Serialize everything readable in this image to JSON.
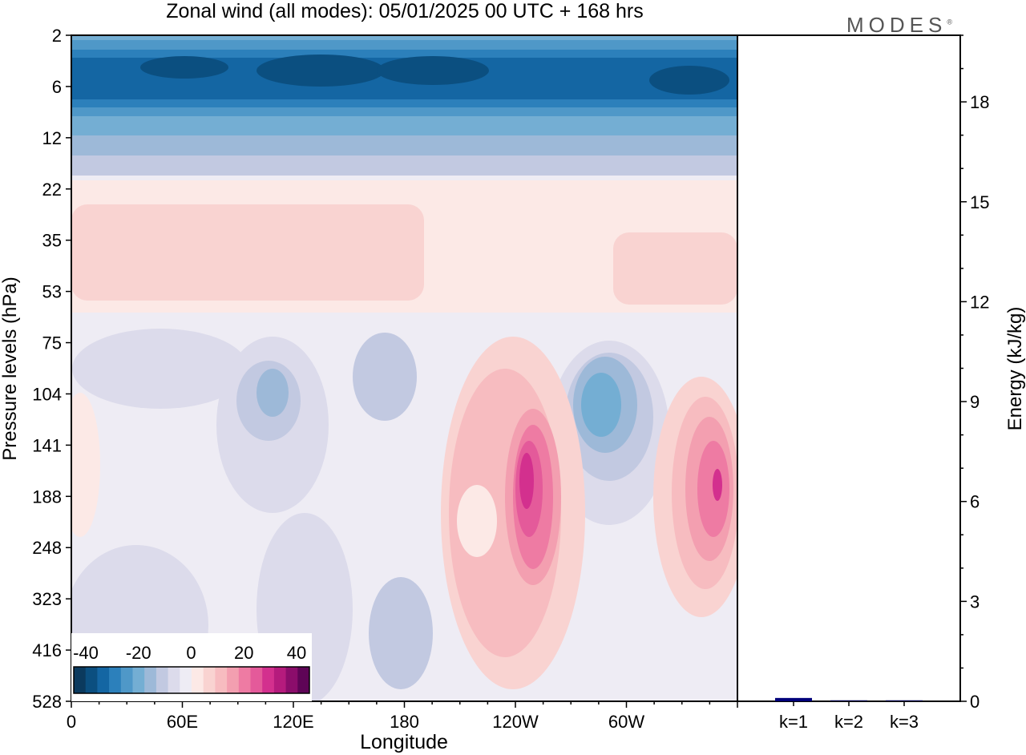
{
  "chart_data": [
    {
      "type": "heatmap",
      "title": "Zonal wind (all modes):  05/01/2025  00 UTC  + 168 hrs",
      "xlabel": "Longitude",
      "ylabel": "Pressure levels (hPa)",
      "xticks": [
        "0",
        "60E",
        "120E",
        "180",
        "120W",
        "60W"
      ],
      "yticks": [
        "2",
        "6",
        "12",
        "22",
        "35",
        "53",
        "75",
        "104",
        "141",
        "188",
        "248",
        "323",
        "416",
        "528"
      ],
      "colorbar": {
        "ticks": [
          "-40",
          "-20",
          "0",
          "20",
          "40"
        ],
        "colors": [
          "#0b3a5e",
          "#0b4f80",
          "#1466a3",
          "#2c80bb",
          "#4f98c8",
          "#74aed3",
          "#9db9d8",
          "#c2c9e1",
          "#dcdbeb",
          "#eeecf4",
          "#fce9e6",
          "#f9d3d1",
          "#f7bcc0",
          "#f39fb0",
          "#ee7ba3",
          "#e45a9a",
          "#d3308e",
          "#b51b7d",
          "#8b0d6b",
          "#5e0456"
        ]
      },
      "regions": [
        {
          "lat_band": "2-12",
          "desc": "easterlies",
          "value": -25
        },
        {
          "lat_band": "22-53",
          "desc": "weak westerlies",
          "value": 5
        },
        {
          "lat_band": "104-248",
          "lon": "120W",
          "value": 40
        },
        {
          "lat_band": "104-248",
          "lon": "20W",
          "value": 35
        },
        {
          "lat_band": "75-141",
          "lon": "80W",
          "value": -20
        }
      ]
    },
    {
      "type": "bar",
      "ylabel": "Energy (kJ/kg)",
      "categories": [
        "k=1",
        "k=2",
        "k=3"
      ],
      "values": [
        0.1,
        0.03,
        0.03
      ],
      "ylim": [
        0,
        20
      ],
      "yticks": [
        "0",
        "3",
        "6",
        "9",
        "12",
        "15",
        "18"
      ],
      "bar_colors": [
        "#00007a",
        "#00004a",
        "#00004a"
      ]
    }
  ],
  "logo": "MODES"
}
